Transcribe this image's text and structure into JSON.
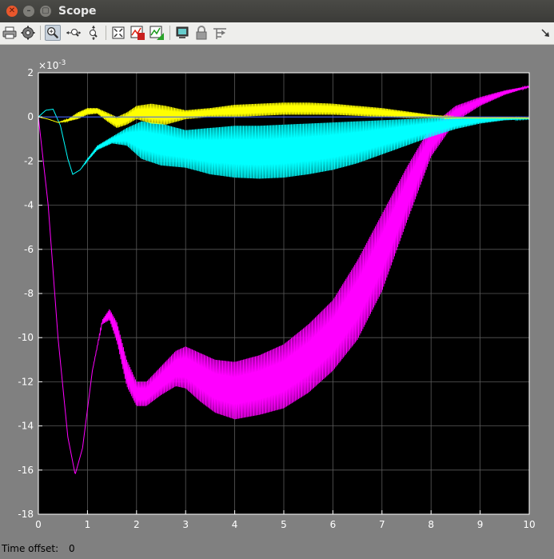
{
  "window": {
    "title": "Scope",
    "buttons": [
      "close",
      "minimize",
      "maximize"
    ]
  },
  "toolbar": {
    "items": [
      {
        "name": "print-icon"
      },
      {
        "name": "parameters-icon"
      },
      {
        "name": "zoom-in-icon",
        "active": true
      },
      {
        "name": "zoom-x-icon"
      },
      {
        "name": "zoom-y-icon"
      },
      {
        "name": "autoscale-icon"
      },
      {
        "name": "save-axes-settings-icon"
      },
      {
        "name": "restore-axes-settings-icon"
      },
      {
        "name": "floating-scope-icon"
      },
      {
        "name": "lock-axes-icon"
      },
      {
        "name": "signal-selection-icon"
      },
      {
        "name": "dock-arrow-icon"
      }
    ]
  },
  "chart_data": {
    "type": "line",
    "title": "",
    "xlabel": "",
    "ylabel": "",
    "xlim": [
      0,
      10
    ],
    "ylim": [
      -18,
      2
    ],
    "y_exponent_label": "×10",
    "y_exponent_power": "-3",
    "xticks": [
      "0",
      "1",
      "2",
      "3",
      "4",
      "5",
      "6",
      "7",
      "8",
      "9",
      "10"
    ],
    "yticks": [
      "2",
      "0",
      "-2",
      "-4",
      "-6",
      "-8",
      "-10",
      "-12",
      "-14",
      "-16",
      "-18"
    ],
    "grid": true,
    "background": "#000000",
    "series": [
      {
        "color": "#ff00ff",
        "x": [
          0,
          0.2,
          0.4,
          0.6,
          0.75,
          0.9,
          1.1,
          1.3,
          1.45,
          1.6,
          1.8,
          2.0,
          2.2,
          2.5,
          2.8,
          3.0,
          3.3,
          3.6,
          4.0,
          4.5,
          5.0,
          5.5,
          6.0,
          6.5,
          7.0,
          7.5,
          8.0,
          8.5,
          9.0,
          9.5,
          10.0
        ],
        "upper": [
          0,
          -4.0,
          -10.0,
          -14.5,
          -16.2,
          -15.0,
          -11.5,
          -9.2,
          -8.7,
          -9.3,
          -11.0,
          -12.0,
          -12.0,
          -11.3,
          -10.6,
          -10.4,
          -10.7,
          -11.0,
          -11.1,
          -10.8,
          -10.3,
          -9.4,
          -8.3,
          -6.5,
          -4.4,
          -2.3,
          -0.4,
          0.5,
          0.9,
          1.2,
          1.4
        ],
        "lower": [
          0,
          -4.0,
          -10.0,
          -14.5,
          -16.2,
          -15.0,
          -11.5,
          -9.4,
          -9.2,
          -10.2,
          -12.2,
          -13.1,
          -13.1,
          -12.6,
          -12.2,
          -12.3,
          -12.9,
          -13.4,
          -13.7,
          -13.5,
          -13.2,
          -12.5,
          -11.5,
          -10.1,
          -7.9,
          -4.8,
          -1.8,
          -0.2,
          0.5,
          1.0,
          1.35
        ]
      },
      {
        "color": "#00ffff",
        "x": [
          0,
          0.15,
          0.3,
          0.45,
          0.6,
          0.7,
          0.85,
          1.0,
          1.2,
          1.5,
          1.8,
          2.1,
          2.5,
          3.0,
          3.5,
          4.0,
          4.5,
          5.0,
          5.5,
          6.0,
          6.5,
          7.0,
          7.5,
          8.0,
          8.5,
          9.0,
          9.5,
          10.0
        ],
        "upper": [
          0,
          0.3,
          0.35,
          -0.4,
          -1.9,
          -2.6,
          -2.4,
          -1.9,
          -1.3,
          -0.9,
          -0.5,
          -0.2,
          -0.3,
          -0.6,
          -0.5,
          -0.4,
          -0.4,
          -0.35,
          -0.3,
          -0.25,
          -0.2,
          -0.15,
          -0.1,
          -0.05,
          0,
          0,
          -0.02,
          -0.05
        ],
        "lower": [
          0,
          0.3,
          0.35,
          -0.4,
          -1.9,
          -2.6,
          -2.4,
          -2.0,
          -1.5,
          -1.2,
          -1.3,
          -1.9,
          -2.2,
          -2.3,
          -2.6,
          -2.75,
          -2.8,
          -2.75,
          -2.6,
          -2.4,
          -2.1,
          -1.7,
          -1.3,
          -0.9,
          -0.55,
          -0.3,
          -0.15,
          -0.1
        ]
      },
      {
        "color": "#ffff00",
        "x": [
          0,
          0.2,
          0.4,
          0.6,
          0.8,
          1.0,
          1.2,
          1.4,
          1.6,
          1.8,
          2.0,
          2.3,
          2.6,
          3.0,
          3.5,
          4.0,
          4.5,
          5.0,
          5.5,
          6.0,
          6.5,
          7.0,
          7.5,
          8.0,
          8.5,
          9.0,
          9.5,
          10.0
        ],
        "upper": [
          0,
          -0.1,
          -0.25,
          -0.1,
          0.2,
          0.4,
          0.4,
          0.2,
          0,
          0.2,
          0.5,
          0.6,
          0.5,
          0.3,
          0.4,
          0.55,
          0.6,
          0.65,
          0.65,
          0.6,
          0.5,
          0.4,
          0.25,
          0.1,
          0,
          -0.03,
          -0.02,
          -0.04
        ],
        "lower": [
          0,
          -0.1,
          -0.25,
          -0.2,
          -0.1,
          0.1,
          0.15,
          -0.2,
          -0.5,
          -0.35,
          -0.1,
          -0.3,
          -0.35,
          -0.1,
          0,
          0,
          0.05,
          0.1,
          0.1,
          0.1,
          0.05,
          0,
          -0.05,
          -0.05,
          -0.05,
          -0.05,
          -0.05,
          -0.06
        ]
      },
      {
        "color": "#3a5fff",
        "x": [
          0,
          10
        ],
        "upper": [
          0,
          0
        ],
        "lower": [
          0,
          0
        ]
      }
    ]
  },
  "status": {
    "label": "Time offset:",
    "value": "0"
  }
}
